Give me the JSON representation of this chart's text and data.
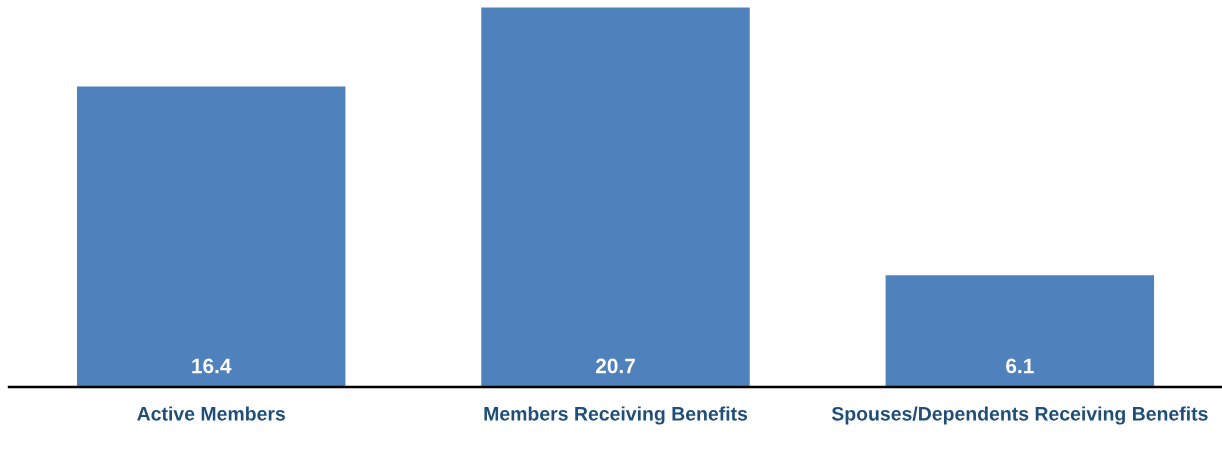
{
  "chart_data": {
    "type": "bar",
    "categories": [
      "Active Members",
      "Members Receiving Benefits",
      "Spouses/Dependents Receiving Benefits"
    ],
    "values": [
      16.4,
      20.7,
      6.1
    ],
    "color": "#4f81bd",
    "data_labels": true,
    "grid": false,
    "legend": false
  }
}
